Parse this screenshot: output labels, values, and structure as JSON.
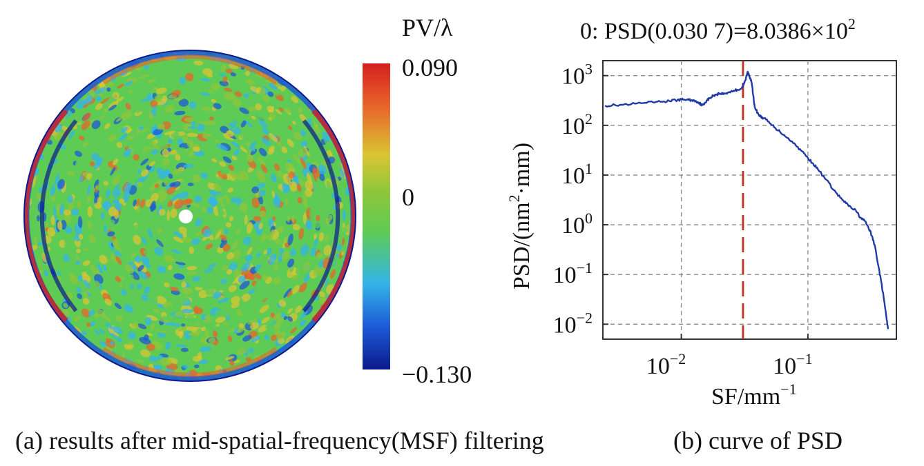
{
  "panel_a": {
    "caption": "(a) results after mid-spatial-frequency(MSF) filtering",
    "colorbar": {
      "title": "PV/λ",
      "max_label": "0.090",
      "mid_label": "0",
      "min_label": "−0.130",
      "max": 0.09,
      "min": -0.13,
      "colormap": "jet",
      "colors": [
        "#0b1a8c",
        "#1c5ad6",
        "#34b4e8",
        "#5ecb55",
        "#8ec63b",
        "#d9c534",
        "#e8652a",
        "#d42020"
      ]
    }
  },
  "panel_b": {
    "caption": "(b) curve of PSD"
  },
  "chart_data": {
    "type": "line",
    "title": "0: PSD(0.030 7)=8.0386×10",
    "title_exp": "2",
    "xlabel": "SF/mm",
    "xlabel_exp": "−1",
    "ylabel": "PSD/(nm",
    "ylabel_exp": "2",
    "ylabel_tail": "·mm)",
    "x_scale": "log",
    "y_scale": "log",
    "xlim": [
      0.0024,
      0.5
    ],
    "ylim": [
      0.005,
      2000
    ],
    "grid": true,
    "x_ticks": [
      {
        "base": "10",
        "exp": "−2",
        "value": 0.01
      },
      {
        "base": "10",
        "exp": "−1",
        "value": 0.1
      }
    ],
    "y_ticks": [
      {
        "base": "10",
        "exp": "3",
        "value": 1000
      },
      {
        "base": "10",
        "exp": "2",
        "value": 100
      },
      {
        "base": "10",
        "exp": "1",
        "value": 10
      },
      {
        "base": "10",
        "exp": "0",
        "value": 1
      },
      {
        "base": "10",
        "exp": "−1",
        "value": 0.1
      },
      {
        "base": "10",
        "exp": "−2",
        "value": 0.01
      }
    ],
    "marker_x": 0.0307,
    "marker_color": "#c0392b",
    "series": [
      {
        "color": "#1f3aa6",
        "x": [
          0.0025,
          0.003,
          0.004,
          0.005,
          0.006,
          0.007,
          0.008,
          0.009,
          0.01,
          0.011,
          0.012,
          0.013,
          0.014,
          0.0145,
          0.015,
          0.016,
          0.017,
          0.018,
          0.019,
          0.02,
          0.022,
          0.024,
          0.026,
          0.028,
          0.03,
          0.031,
          0.032,
          0.0335,
          0.034,
          0.035,
          0.036,
          0.037,
          0.038,
          0.04,
          0.042,
          0.045,
          0.05,
          0.055,
          0.06,
          0.07,
          0.08,
          0.09,
          0.1,
          0.11,
          0.12,
          0.14,
          0.16,
          0.18,
          0.2,
          0.22,
          0.24,
          0.26,
          0.28,
          0.3,
          0.32,
          0.34,
          0.36,
          0.38,
          0.4,
          0.42,
          0.43
        ],
        "y": [
          250,
          255,
          265,
          280,
          290,
          300,
          310,
          320,
          330,
          330,
          320,
          310,
          280,
          250,
          270,
          320,
          360,
          400,
          420,
          440,
          430,
          470,
          500,
          520,
          560,
          650,
          800,
          1200,
          1100,
          900,
          700,
          400,
          230,
          180,
          150,
          140,
          110,
          90,
          75,
          55,
          40,
          30,
          22,
          17,
          13,
          8,
          5,
          3.5,
          2.7,
          2.2,
          1.9,
          1.4,
          1.2,
          0.9,
          0.6,
          0.35,
          0.15,
          0.07,
          0.03,
          0.012,
          0.008
        ]
      }
    ]
  }
}
